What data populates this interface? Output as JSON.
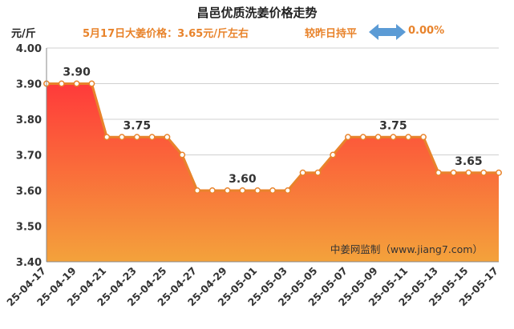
{
  "header": {
    "title": "昌邑优质洗姜价格走势",
    "subtitle": "5月17日大姜价格：3.65元/斤左右",
    "compare_label": "较昨日持平",
    "compare_value": "0.00%",
    "arrow_icon": "double-arrow-icon"
  },
  "colors": {
    "line": "#e8832b",
    "fill_top": "#ff3a3a",
    "fill_bottom": "#f4a23b",
    "accent_text": "#e8832b",
    "arrow": "#5b9bd5"
  },
  "chart_data": {
    "type": "area",
    "ylabel": "元/斤",
    "ylim": [
      3.4,
      4.0
    ],
    "yticks": [
      "3.40",
      "3.50",
      "3.60",
      "3.70",
      "3.80",
      "3.90",
      "4.00"
    ],
    "grid": true,
    "x": [
      "25-04-17",
      "25-04-18",
      "25-04-19",
      "25-04-20",
      "25-04-21",
      "25-04-22",
      "25-04-23",
      "25-04-24",
      "25-04-25",
      "25-04-26",
      "25-04-27",
      "25-04-28",
      "25-04-29",
      "25-04-30",
      "25-05-01",
      "25-05-02",
      "25-05-03",
      "25-05-04",
      "25-05-05",
      "25-05-06",
      "25-05-07",
      "25-05-08",
      "25-05-09",
      "25-05-10",
      "25-05-11",
      "25-05-12",
      "25-05-13",
      "25-05-14",
      "25-05-15",
      "25-05-16",
      "25-05-17"
    ],
    "xtick_labels": [
      "25-04-17",
      "25-04-19",
      "25-04-21",
      "25-04-23",
      "25-04-25",
      "25-04-27",
      "25-04-29",
      "25-05-01",
      "25-05-03",
      "25-05-05",
      "25-05-07",
      "25-05-09",
      "25-05-11",
      "25-05-13",
      "25-05-15",
      "25-05-17"
    ],
    "values": [
      3.9,
      3.9,
      3.9,
      3.9,
      3.75,
      3.75,
      3.75,
      3.75,
      3.75,
      3.7,
      3.6,
      3.6,
      3.6,
      3.6,
      3.6,
      3.6,
      3.6,
      3.65,
      3.65,
      3.7,
      3.75,
      3.75,
      3.75,
      3.75,
      3.75,
      3.75,
      3.65,
      3.65,
      3.65,
      3.65,
      3.65
    ],
    "annotations": [
      {
        "index": 2,
        "text": "3.90"
      },
      {
        "index": 6,
        "text": "3.75"
      },
      {
        "index": 13,
        "text": "3.60"
      },
      {
        "index": 23,
        "text": "3.75"
      },
      {
        "index": 28,
        "text": "3.65"
      }
    ],
    "watermark": "中姜网监制（www.jiang7.com）"
  }
}
